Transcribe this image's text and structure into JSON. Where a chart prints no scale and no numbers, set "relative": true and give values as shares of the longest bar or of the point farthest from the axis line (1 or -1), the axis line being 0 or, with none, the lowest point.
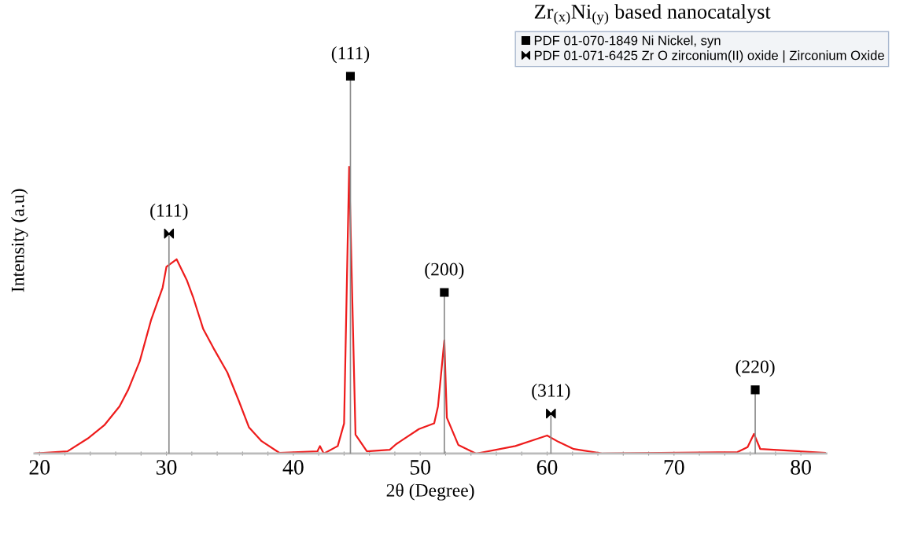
{
  "chart_data": {
    "type": "line",
    "title": "Zr$_{(x)}$Ni$_{(y)}$ based nanocatalyst",
    "xlabel": "2θ (Degree)",
    "ylabel": "Intensity (a.u)",
    "relative": true,
    "xlim": [
      19.6,
      82
    ],
    "xticks": [
      20,
      {
        "value": 22,
        "label": null
      },
      {
        "value": 24,
        "label": null
      },
      {
        "value": 26,
        "label": null
      },
      {
        "value": 28,
        "label": null
      },
      30,
      {
        "value": 32,
        "label": null
      },
      {
        "value": 34,
        "label": null
      },
      {
        "value": 36,
        "label": null
      },
      {
        "value": 38,
        "label": null
      },
      40,
      {
        "value": 42,
        "label": null
      },
      {
        "value": 44,
        "label": null
      },
      {
        "value": 46,
        "label": null
      },
      {
        "value": 48,
        "label": null
      },
      50,
      {
        "value": 52,
        "label": null
      },
      {
        "value": 54,
        "label": null
      },
      {
        "value": 56,
        "label": null
      },
      {
        "value": 58,
        "label": null
      },
      60,
      {
        "value": 62,
        "label": null
      },
      {
        "value": 64,
        "label": null
      },
      {
        "value": 66,
        "label": null
      },
      {
        "value": 68,
        "label": null
      },
      70,
      {
        "value": 72,
        "label": null
      },
      {
        "value": 74,
        "label": null
      },
      {
        "value": 76,
        "label": null
      },
      {
        "value": 78,
        "label": null
      },
      80
    ],
    "grid": false,
    "legend": "top right",
    "tick_labels": "x",
    "series": [
      {
        "color": "#ee1c1c",
        "marker": "none",
        "line_style": "solid",
        "x": [
          19.6,
          22.2,
          23.8,
          25.1,
          26.3,
          27.0,
          27.9,
          28.8,
          29.7,
          30.0,
          30.8,
          31.6,
          32.1,
          32.9,
          33.7,
          34.8,
          35.7,
          36.5,
          37.5,
          38.9,
          41.9,
          42.1,
          42.4,
          43.5,
          44.0,
          44.4,
          44.9,
          45.8,
          47.6,
          48.1,
          49.9,
          51.1,
          51.4,
          51.9,
          52.1,
          53.0,
          54.4,
          57.5,
          59.3,
          60.0,
          60.9,
          62.1,
          64.4,
          75.0,
          75.8,
          76.3,
          76.8,
          81.9
        ],
        "values": [
          0.0,
          0.006,
          0.04,
          0.075,
          0.125,
          0.17,
          0.245,
          0.355,
          0.44,
          0.495,
          0.515,
          0.46,
          0.415,
          0.33,
          0.28,
          0.215,
          0.14,
          0.07,
          0.033,
          0.002,
          0.006,
          0.02,
          0.0,
          0.02,
          0.08,
          0.76,
          0.05,
          0.006,
          0.01,
          0.025,
          0.065,
          0.08,
          0.125,
          0.3,
          0.095,
          0.023,
          0.0,
          0.02,
          0.04,
          0.048,
          0.031,
          0.012,
          0.0,
          0.004,
          0.017,
          0.052,
          0.012,
          0.002
        ]
      },
      {
        "type": "lollipop",
        "name": "PDF 01-070-1849 Ni Nickel, syn",
        "color": "#000000",
        "marker": "square",
        "x": [
          44.5,
          51.9,
          76.4
        ],
        "values": [
          1.0,
          0.427,
          0.169
        ]
      },
      {
        "type": "lollipop",
        "name": "PDF 01-071-6425 Zr O zirconium(II) oxide | Zirconium Oxide",
        "color": "#000000",
        "x": [
          30.2,
          60.3
        ],
        "values": [
          0.583,
          0.106
        ]
      }
    ],
    "annotations": [
      {
        "text": "(111)",
        "x": 30.2,
        "y": 0.583
      },
      {
        "text": "(111)",
        "x": 44.5,
        "y": 1.0
      },
      {
        "text": "(200)",
        "x": 51.9,
        "y": 0.427
      },
      {
        "text": "(311)",
        "x": 60.3,
        "y": 0.106
      },
      {
        "text": "(220)",
        "x": 76.4,
        "y": 0.169
      }
    ]
  }
}
